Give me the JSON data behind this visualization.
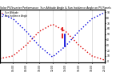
{
  "title": "Solar PV/Inverter Performance  Sun Altitude Angle & Sun Incidence Angle on PV Panels",
  "background_color": "#ffffff",
  "grid_color": "#cccccc",
  "time_labels": [
    "04:00",
    "06:00",
    "08:00",
    "10:00",
    "12:00",
    "14:00",
    "16:00",
    "18:00",
    "20:00"
  ],
  "time_values": [
    4,
    6,
    8,
    10,
    12,
    14,
    16,
    18,
    20
  ],
  "sun_altitude": [
    5,
    10,
    30,
    55,
    68,
    55,
    30,
    10,
    2
  ],
  "sun_incidence": [
    88,
    78,
    55,
    28,
    8,
    28,
    55,
    78,
    90
  ],
  "altitude_color": "#dd0000",
  "incidence_color": "#0000dd",
  "vline_x": 13.5,
  "vline_red_y1": 42,
  "vline_red_y2": 62,
  "vline_blue_y1": 28,
  "vline_blue_y2": 50,
  "ylim": [
    -2,
    95
  ],
  "xlim": [
    4,
    20
  ],
  "yticks_right": [
    0,
    10,
    20,
    30,
    40,
    50,
    60,
    70,
    80,
    90
  ],
  "legend_altitude": "Sun Altitude",
  "legend_incidence": "Sun Incidence Angle"
}
